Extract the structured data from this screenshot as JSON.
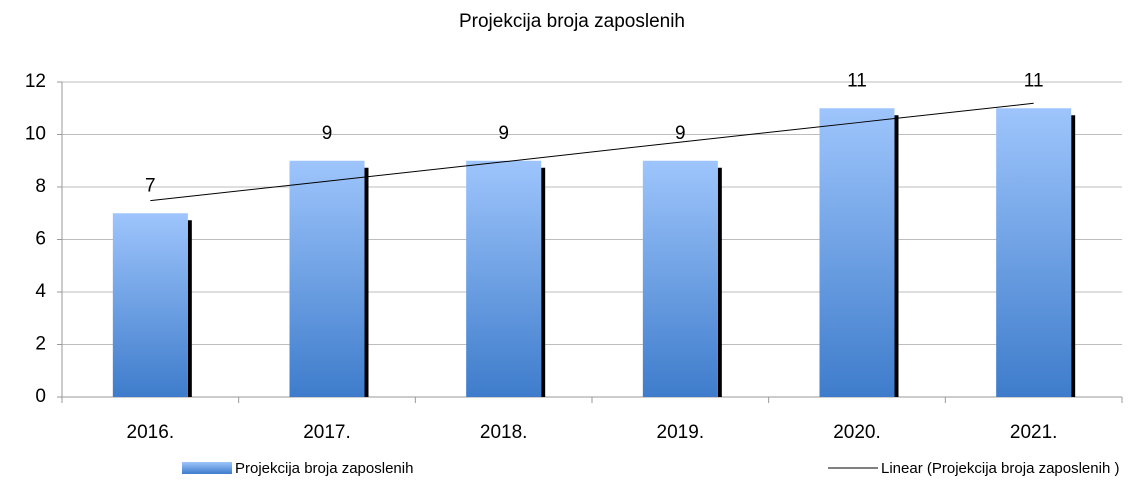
{
  "chart_data": {
    "type": "bar",
    "title": "Projekcija broja zaposlenih",
    "categories": [
      "2016.",
      "2017.",
      "2018.",
      "2019.",
      "2020.",
      "2021."
    ],
    "series": [
      {
        "name": "Projekcija broja zaposlenih",
        "type": "bar",
        "color": "#5b8fdc",
        "values": [
          7,
          9,
          9,
          9,
          11,
          11
        ]
      },
      {
        "name": "Linear (Projekcija broja zaposlenih )",
        "type": "line",
        "color": "#000000",
        "values": [
          7.48,
          8.22,
          8.96,
          9.71,
          10.45,
          11.19
        ]
      }
    ],
    "ylim": [
      0,
      12
    ],
    "yticks": [
      0,
      2,
      4,
      6,
      8,
      10,
      12
    ],
    "grid": true,
    "legend": "bottom"
  }
}
